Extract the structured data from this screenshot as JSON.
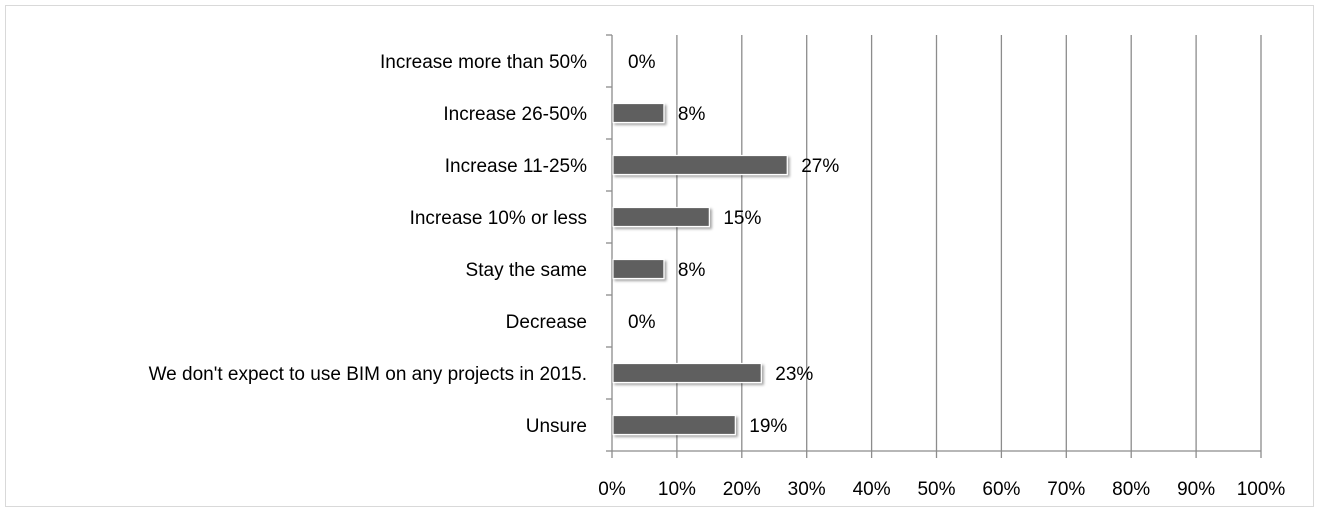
{
  "chart_data": {
    "type": "bar",
    "orientation": "horizontal",
    "categories": [
      "Increase more than 50%",
      "Increase 26-50%",
      "Increase 11-25%",
      "Increase 10% or less",
      "Stay the same",
      "Decrease",
      "We don't expect to use BIM on any projects in 2015.",
      "Unsure"
    ],
    "values": [
      0,
      8,
      27,
      15,
      8,
      0,
      23,
      19
    ],
    "data_labels": [
      "0%",
      "8%",
      "27%",
      "15%",
      "8%",
      "0%",
      "23%",
      "19%"
    ],
    "xlim": [
      0,
      100
    ],
    "x_ticks": [
      "0%",
      "10%",
      "20%",
      "30%",
      "40%",
      "50%",
      "60%",
      "70%",
      "80%",
      "90%",
      "100%"
    ],
    "title": "",
    "xlabel": "",
    "ylabel": "",
    "grid": "vertical",
    "legend": "none",
    "colors": {
      "bar": "#5f5f5f",
      "gridline": "#8c8c8c",
      "axis": "#8c8c8c",
      "frame": "#d9d9d9"
    }
  }
}
